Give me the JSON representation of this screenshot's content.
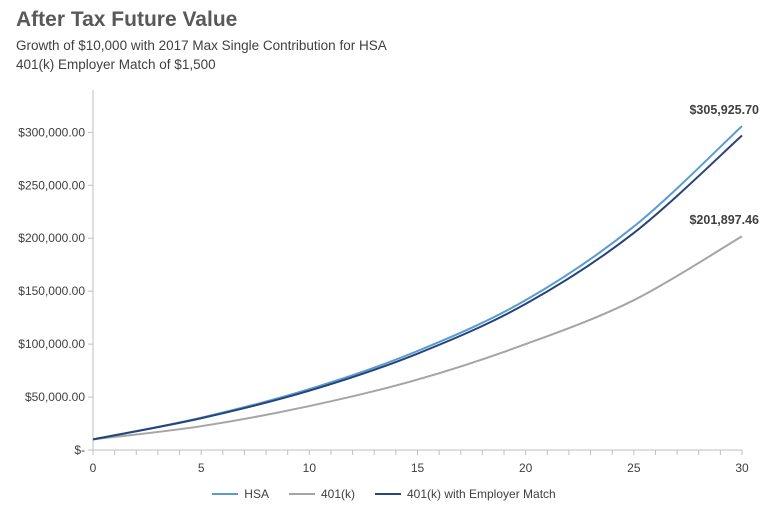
{
  "chart_data": {
    "type": "line",
    "title": "After Tax Future Value",
    "subtitle": [
      "Growth of $10,000 with 2017 Max Single Contribution for HSA",
      "401(k) Employer Match of $1,500"
    ],
    "xlabel": "",
    "ylabel": "",
    "xlim": [
      0,
      30
    ],
    "ylim": [
      0,
      340000
    ],
    "x_ticks": [
      0,
      5,
      10,
      15,
      20,
      25,
      30
    ],
    "y_ticks": [
      0,
      50000,
      100000,
      150000,
      200000,
      250000,
      300000
    ],
    "y_tick_labels": [
      "$-",
      "$50,000.00",
      "$100,000.00",
      "$150,000.00",
      "$200,000.00",
      "$250,000.00",
      "$300,000.00"
    ],
    "grid": false,
    "legend_position": "bottom",
    "x": [
      0,
      5,
      10,
      15,
      20,
      25,
      30
    ],
    "series": [
      {
        "name": "HSA",
        "color": "#5b9bd5",
        "values": [
          10000,
          30500,
          57500,
          93500,
          141500,
          211000,
          305925.7
        ]
      },
      {
        "name": "401(k)",
        "color": "#a5a5a5",
        "values": [
          10000,
          22500,
          41500,
          66500,
          100000,
          141500,
          201897.46
        ]
      },
      {
        "name": "401(k) with Employer Match",
        "color": "#264478",
        "values": [
          10000,
          30000,
          56000,
          91000,
          138000,
          205000,
          297000
        ]
      }
    ],
    "annotations": [
      {
        "text": "$305,925.70",
        "x": 30,
        "y": 305925.7
      },
      {
        "text": "$201,897.46",
        "x": 30,
        "y": 201897.46
      }
    ]
  }
}
